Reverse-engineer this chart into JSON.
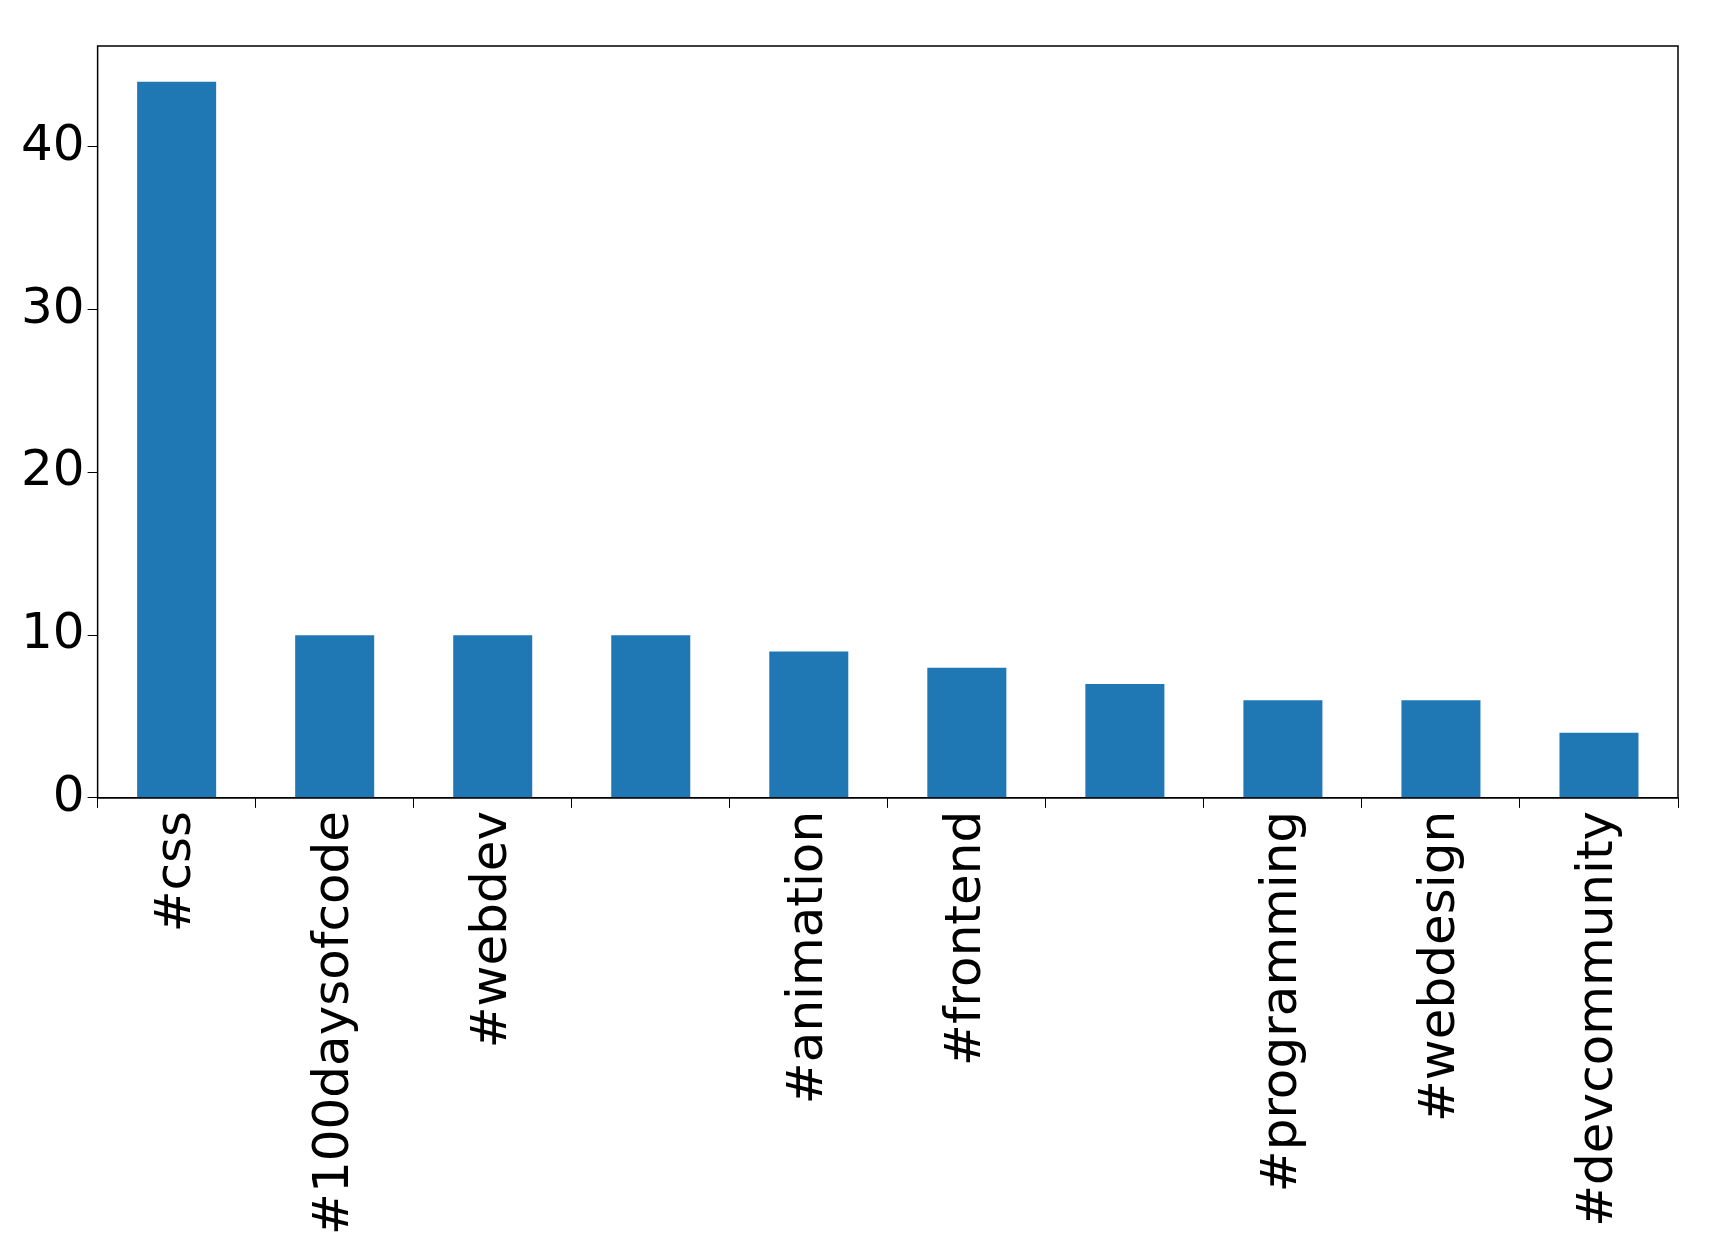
{
  "chart_data": {
    "type": "bar",
    "categories": [
      "#css",
      "#100daysofcode",
      "#webdev",
      null,
      "#animation",
      "#frontend",
      null,
      "#programming",
      "#webdesign",
      "#devcommunity"
    ],
    "values": [
      44,
      10,
      10,
      10,
      9,
      8,
      7,
      6,
      6,
      4
    ],
    "color": "#1f77b4",
    "ylim": [
      0,
      46.2
    ],
    "yticks": [
      0,
      10,
      20,
      30,
      40
    ],
    "grid": false,
    "legend": false
  }
}
